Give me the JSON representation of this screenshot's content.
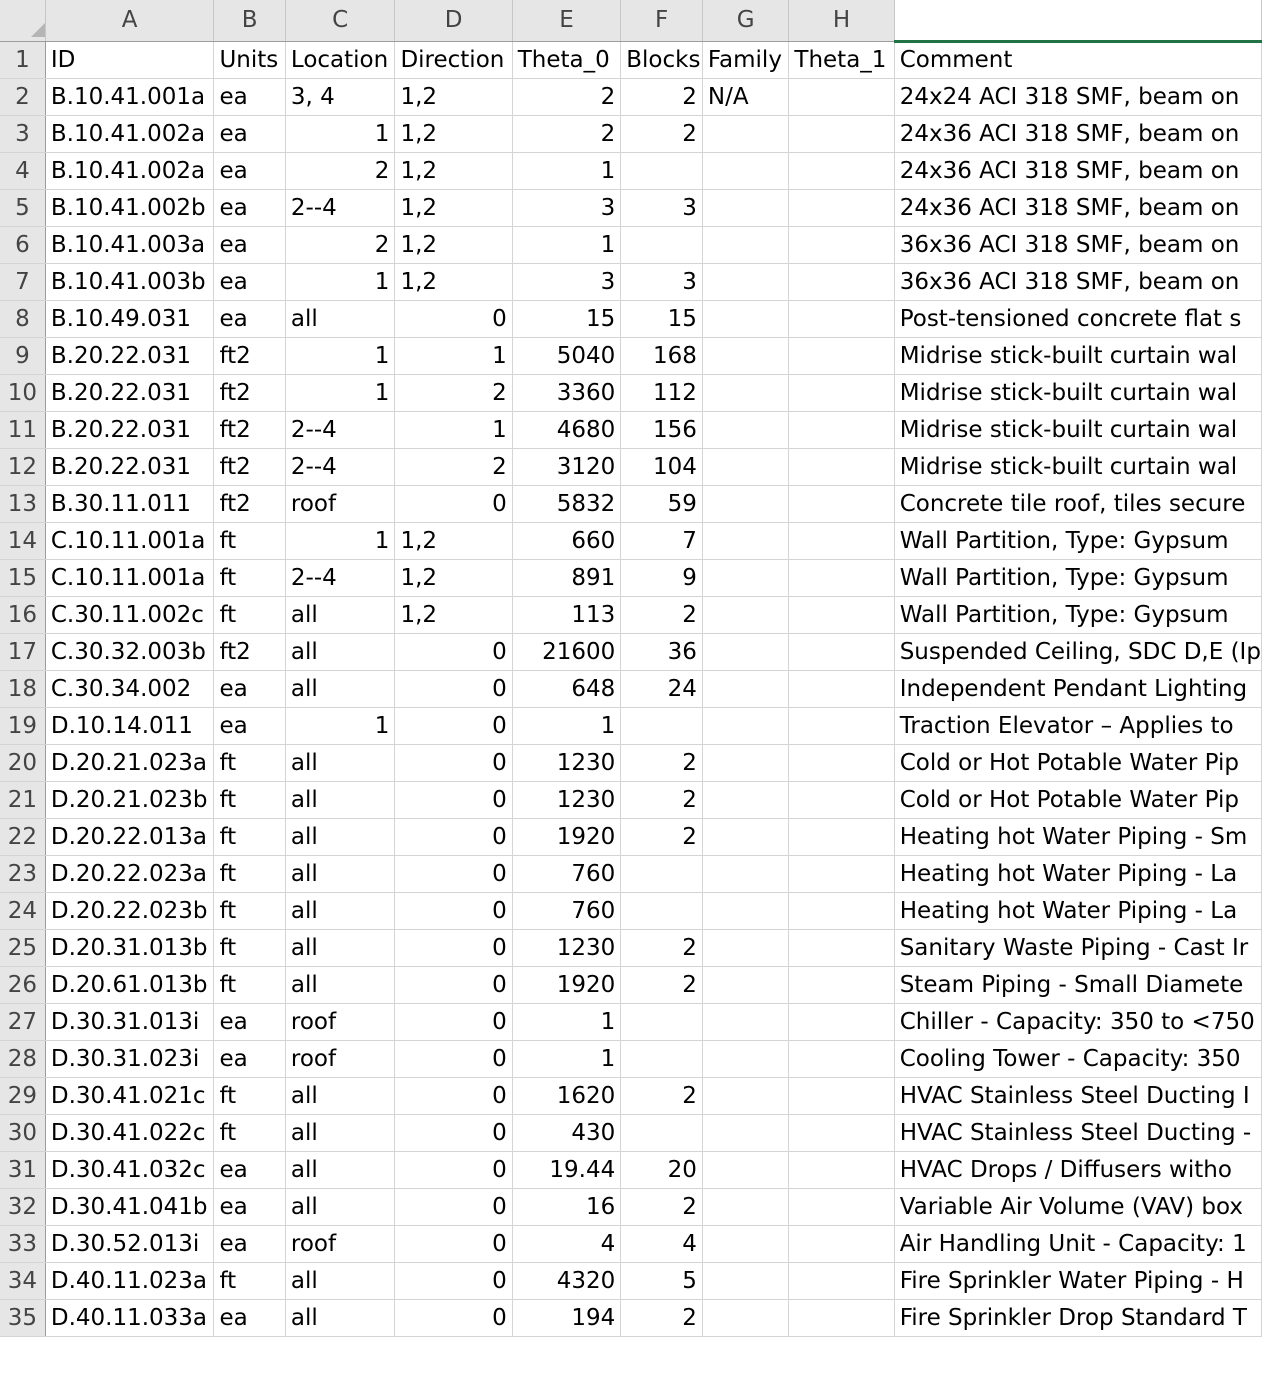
{
  "columns": [
    "A",
    "B",
    "C",
    "D",
    "E",
    "F",
    "G",
    "H",
    ""
  ],
  "rows": [
    {
      "n": "1",
      "cells": [
        "ID",
        "Units",
        "Location",
        "Direction",
        "Theta_0",
        "Blocks",
        "Family",
        "Theta_1",
        "Comment"
      ],
      "align": [
        "l",
        "l",
        "l",
        "l",
        "l",
        "l",
        "l",
        "l",
        "l"
      ]
    },
    {
      "n": "2",
      "cells": [
        "B.10.41.001a",
        "ea",
        "3, 4",
        "1,2",
        "2",
        "2",
        "N/A",
        "",
        "24x24 ACI 318 SMF, beam on"
      ]
    },
    {
      "n": "3",
      "cells": [
        "B.10.41.002a",
        "ea",
        "1",
        "1,2",
        "2",
        "2",
        "",
        "",
        "24x36 ACI 318 SMF, beam on"
      ]
    },
    {
      "n": "4",
      "cells": [
        "B.10.41.002a",
        "ea",
        "2",
        "1,2",
        "1",
        "",
        "",
        "",
        "24x36 ACI 318 SMF, beam on"
      ]
    },
    {
      "n": "5",
      "cells": [
        "B.10.41.002b",
        "ea",
        "2--4",
        "1,2",
        "3",
        "3",
        "",
        "",
        "24x36 ACI 318 SMF, beam on"
      ]
    },
    {
      "n": "6",
      "cells": [
        "B.10.41.003a",
        "ea",
        "2",
        "1,2",
        "1",
        "",
        "",
        "",
        "36x36 ACI 318 SMF, beam on"
      ]
    },
    {
      "n": "7",
      "cells": [
        "B.10.41.003b",
        "ea",
        "1",
        "1,2",
        "3",
        "3",
        "",
        "",
        "36x36 ACI 318 SMF, beam on"
      ]
    },
    {
      "n": "8",
      "cells": [
        "B.10.49.031",
        "ea",
        "all",
        "0",
        "15",
        "15",
        "",
        "",
        "Post-tensioned concrete flat s"
      ]
    },
    {
      "n": "9",
      "cells": [
        "B.20.22.031",
        "ft2",
        "1",
        "1",
        "5040",
        "168",
        "",
        "",
        "Midrise stick-built curtain wal"
      ]
    },
    {
      "n": "10",
      "cells": [
        "B.20.22.031",
        "ft2",
        "1",
        "2",
        "3360",
        "112",
        "",
        "",
        "Midrise stick-built curtain wal"
      ]
    },
    {
      "n": "11",
      "cells": [
        "B.20.22.031",
        "ft2",
        "2--4",
        "1",
        "4680",
        "156",
        "",
        "",
        "Midrise stick-built curtain wal"
      ]
    },
    {
      "n": "12",
      "cells": [
        "B.20.22.031",
        "ft2",
        "2--4",
        "2",
        "3120",
        "104",
        "",
        "",
        "Midrise stick-built curtain wal"
      ]
    },
    {
      "n": "13",
      "cells": [
        "B.30.11.011",
        "ft2",
        "roof",
        "0",
        "5832",
        "59",
        "",
        "",
        "Concrete tile roof, tiles secure"
      ]
    },
    {
      "n": "14",
      "cells": [
        "C.10.11.001a",
        "ft",
        "1",
        "1,2",
        "660",
        "7",
        "",
        "",
        "Wall Partition, Type: Gypsum"
      ]
    },
    {
      "n": "15",
      "cells": [
        "C.10.11.001a",
        "ft",
        "2--4",
        "1,2",
        "891",
        "9",
        "",
        "",
        "Wall Partition, Type: Gypsum"
      ]
    },
    {
      "n": "16",
      "cells": [
        "C.30.11.002c",
        "ft",
        "all",
        "1,2",
        "113",
        "2",
        "",
        "",
        "Wall Partition, Type: Gypsum"
      ]
    },
    {
      "n": "17",
      "cells": [
        "C.30.32.003b",
        "ft2",
        "all",
        "0",
        "21600",
        "36",
        "",
        "",
        "Suspended Ceiling, SDC D,E (Ip"
      ]
    },
    {
      "n": "18",
      "cells": [
        "C.30.34.002",
        "ea",
        "all",
        "0",
        "648",
        "24",
        "",
        "",
        "Independent Pendant Lighting"
      ]
    },
    {
      "n": "19",
      "cells": [
        "D.10.14.011",
        "ea",
        "1",
        "0",
        "1",
        "",
        "",
        "",
        "Traction Elevator – Applies to"
      ]
    },
    {
      "n": "20",
      "cells": [
        "D.20.21.023a",
        "ft",
        "all",
        "0",
        "1230",
        "2",
        "",
        "",
        "Cold or Hot Potable Water Pip"
      ]
    },
    {
      "n": "21",
      "cells": [
        "D.20.21.023b",
        "ft",
        "all",
        "0",
        "1230",
        "2",
        "",
        "",
        "Cold or Hot Potable Water Pip"
      ]
    },
    {
      "n": "22",
      "cells": [
        "D.20.22.013a",
        "ft",
        "all",
        "0",
        "1920",
        "2",
        "",
        "",
        "Heating hot Water Piping - Sm"
      ]
    },
    {
      "n": "23",
      "cells": [
        "D.20.22.023a",
        "ft",
        "all",
        "0",
        "760",
        "",
        "",
        "",
        "Heating hot Water Piping - La"
      ]
    },
    {
      "n": "24",
      "cells": [
        "D.20.22.023b",
        "ft",
        "all",
        "0",
        "760",
        "",
        "",
        "",
        "Heating hot Water Piping - La"
      ]
    },
    {
      "n": "25",
      "cells": [
        "D.20.31.013b",
        "ft",
        "all",
        "0",
        "1230",
        "2",
        "",
        "",
        "Sanitary Waste Piping - Cast Ir"
      ]
    },
    {
      "n": "26",
      "cells": [
        "D.20.61.013b",
        "ft",
        "all",
        "0",
        "1920",
        "2",
        "",
        "",
        "Steam Piping - Small Diamete"
      ]
    },
    {
      "n": "27",
      "cells": [
        "D.30.31.013i",
        "ea",
        "roof",
        "0",
        "1",
        "",
        "",
        "",
        "Chiller - Capacity: 350 to <750"
      ]
    },
    {
      "n": "28",
      "cells": [
        "D.30.31.023i",
        "ea",
        "roof",
        "0",
        "1",
        "",
        "",
        "",
        "Cooling Tower - Capacity: 350"
      ]
    },
    {
      "n": "29",
      "cells": [
        "D.30.41.021c",
        "ft",
        "all",
        "0",
        "1620",
        "2",
        "",
        "",
        "HVAC Stainless Steel Ducting I"
      ]
    },
    {
      "n": "30",
      "cells": [
        "D.30.41.022c",
        "ft",
        "all",
        "0",
        "430",
        "",
        "",
        "",
        "HVAC Stainless Steel Ducting -"
      ]
    },
    {
      "n": "31",
      "cells": [
        "D.30.41.032c",
        "ea",
        "all",
        "0",
        "19.44",
        "20",
        "",
        "",
        "HVAC Drops / Diffusers witho"
      ]
    },
    {
      "n": "32",
      "cells": [
        "D.30.41.041b",
        "ea",
        "all",
        "0",
        "16",
        "2",
        "",
        "",
        "Variable Air Volume (VAV) box"
      ]
    },
    {
      "n": "33",
      "cells": [
        "D.30.52.013i",
        "ea",
        "roof",
        "0",
        "4",
        "4",
        "",
        "",
        "Air Handling Unit - Capacity: 1"
      ]
    },
    {
      "n": "34",
      "cells": [
        "D.40.11.023a",
        "ft",
        "all",
        "0",
        "4320",
        "5",
        "",
        "",
        "Fire Sprinkler Water Piping - H"
      ]
    },
    {
      "n": "35",
      "cells": [
        "D.40.11.033a",
        "ea",
        "all",
        "0",
        "194",
        "2",
        "",
        "",
        "Fire Sprinkler Drop Standard T"
      ]
    }
  ]
}
